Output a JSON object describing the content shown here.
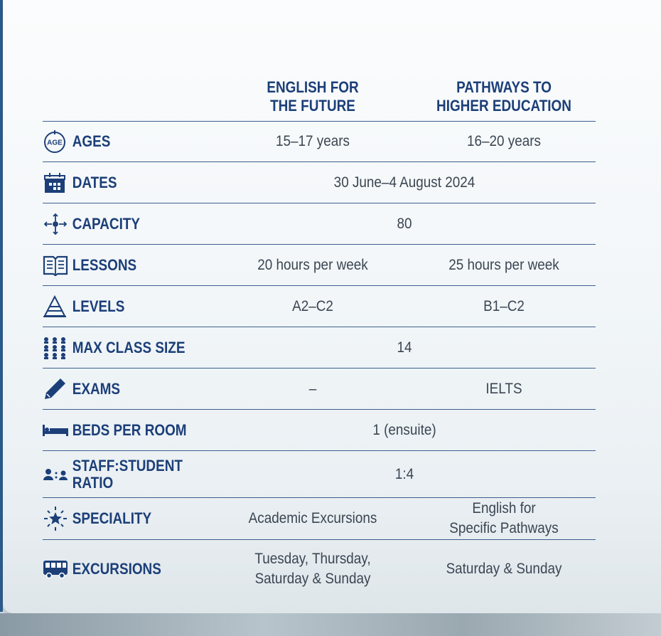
{
  "table": {
    "columns": [
      "ENGLISH FOR\nTHE FUTURE",
      "PATHWAYS TO\nHIGHER EDUCATION"
    ],
    "age_icon_text": "AGE",
    "rows": [
      {
        "label": "AGES",
        "cells": [
          "15–17 years",
          "16–20 years"
        ]
      },
      {
        "label": "DATES",
        "cells": [
          "30 June–4 August 2024"
        ]
      },
      {
        "label": "CAPACITY",
        "cells": [
          "80"
        ]
      },
      {
        "label": "LESSONS",
        "cells": [
          "20 hours per week",
          "25 hours per week"
        ]
      },
      {
        "label": "LEVELS",
        "cells": [
          "A2–C2",
          "B1–C2"
        ]
      },
      {
        "label": "MAX CLASS SIZE",
        "cells": [
          "14"
        ]
      },
      {
        "label": "EXAMS",
        "cells": [
          "–",
          "IELTS"
        ]
      },
      {
        "label": "BEDS PER ROOM",
        "cells": [
          "1 (ensuite)"
        ]
      },
      {
        "label": "STAFF:STUDENT\nRATIO",
        "cells": [
          "1:4"
        ]
      },
      {
        "label": "SPECIALITY",
        "cells": [
          "Academic Excursions",
          "English for\nSpecific Pathways"
        ]
      },
      {
        "label": "EXCURSIONS",
        "cells": [
          "Tuesday, Thursday,\nSaturday & Sunday",
          "Saturday & Sunday"
        ]
      }
    ]
  }
}
